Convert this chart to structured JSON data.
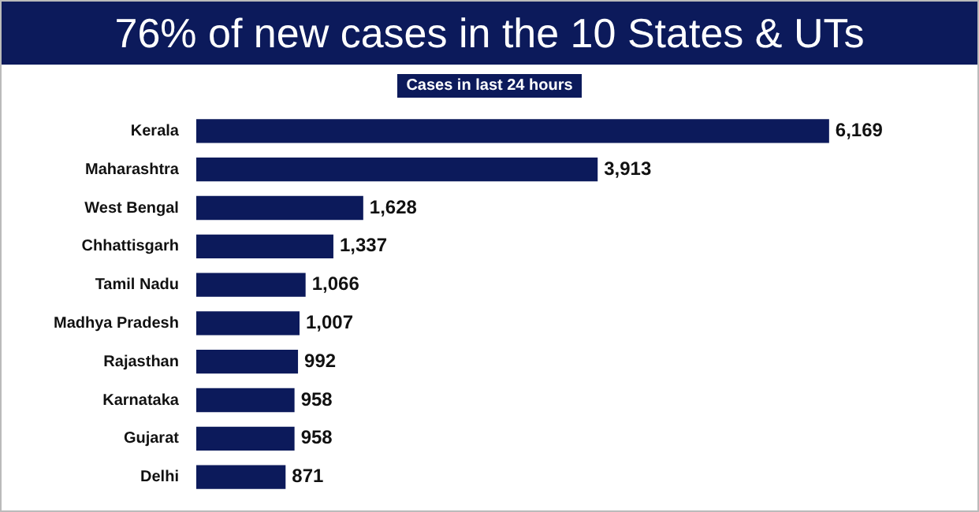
{
  "chart_data": {
    "type": "bar",
    "title": "76% of new cases in the 10 States & UTs",
    "subtitle": "Cases in last 24 hours",
    "orientation": "horizontal",
    "categories": [
      "Kerala",
      "Maharashtra",
      "West Bengal",
      "Chhattisgarh",
      "Tamil Nadu",
      "Madhya Pradesh",
      "Rajasthan",
      "Karnataka",
      "Gujarat",
      "Delhi"
    ],
    "values": [
      6169,
      3913,
      1628,
      1337,
      1066,
      1007,
      992,
      958,
      958,
      871
    ],
    "value_labels": [
      "6,169",
      "3,913",
      "1,628",
      "1,337",
      "1,066",
      "1,007",
      "992",
      "958",
      "958",
      "871"
    ],
    "color": "#0c1a5b"
  }
}
